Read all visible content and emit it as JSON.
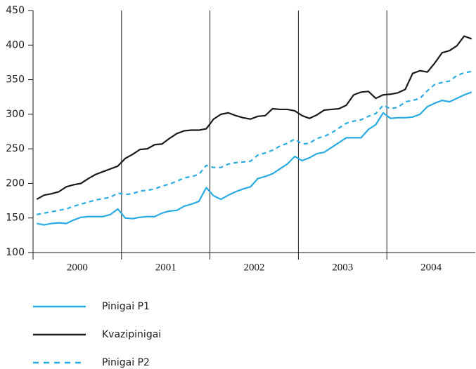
{
  "chart_data": {
    "type": "line",
    "categories": [
      null,
      null,
      null,
      null,
      null,
      null,
      "2000",
      null,
      null,
      null,
      null,
      null,
      null,
      null,
      null,
      null,
      null,
      null,
      "2001",
      null,
      null,
      null,
      null,
      null,
      null,
      null,
      null,
      null,
      null,
      null,
      "2002",
      null,
      null,
      null,
      null,
      null,
      null,
      null,
      null,
      null,
      null,
      null,
      "2003",
      null,
      null,
      null,
      null,
      null,
      null,
      null,
      null,
      null,
      null,
      null,
      "2004",
      null,
      null,
      null,
      null,
      null
    ],
    "series": [
      {
        "name": "Pinigai P1",
        "color": "#29abe2",
        "dashed": false,
        "values": [
          142,
          140,
          142,
          143,
          142,
          147,
          151,
          152,
          152,
          152,
          155,
          163,
          150,
          149,
          151,
          152,
          152,
          157,
          160,
          161,
          167,
          170,
          174,
          194,
          182,
          177,
          183,
          188,
          192,
          195,
          207,
          210,
          214,
          221,
          228,
          239,
          233,
          237,
          243,
          245,
          252,
          259,
          266,
          266,
          266,
          278,
          285,
          302,
          294,
          295,
          295,
          296,
          300,
          311,
          316,
          320,
          318,
          323,
          328,
          332
        ]
      },
      {
        "name": "Kvazipinigai",
        "color": "#1a1a1a",
        "dashed": false,
        "values": [
          177,
          183,
          185,
          188,
          195,
          198,
          200,
          207,
          213,
          217,
          221,
          225,
          236,
          242,
          249,
          250,
          256,
          257,
          265,
          272,
          276,
          277,
          277,
          279,
          293,
          300,
          302,
          298,
          295,
          293,
          297,
          298,
          308,
          307,
          307,
          305,
          298,
          294,
          299,
          306,
          307,
          308,
          313,
          328,
          332,
          333,
          323,
          328,
          329,
          331,
          336,
          359,
          363,
          361,
          374,
          389,
          392,
          399,
          413,
          409
        ]
      },
      {
        "name": "Pinigai P2",
        "color": "#29abe2",
        "dashed": true,
        "values": [
          155,
          157,
          159,
          161,
          163,
          167,
          170,
          173,
          176,
          178,
          180,
          186,
          184,
          185,
          189,
          190,
          192,
          196,
          199,
          203,
          208,
          210,
          213,
          226,
          223,
          223,
          228,
          230,
          231,
          232,
          241,
          244,
          248,
          254,
          258,
          264,
          257,
          258,
          265,
          268,
          273,
          280,
          287,
          290,
          292,
          297,
          301,
          313,
          308,
          310,
          318,
          320,
          323,
          334,
          343,
          346,
          348,
          356,
          360,
          362
        ]
      }
    ],
    "ylim": [
      100,
      450
    ],
    "yticks": [
      100,
      150,
      200,
      250,
      300,
      350,
      400,
      450
    ],
    "grid": false
  }
}
